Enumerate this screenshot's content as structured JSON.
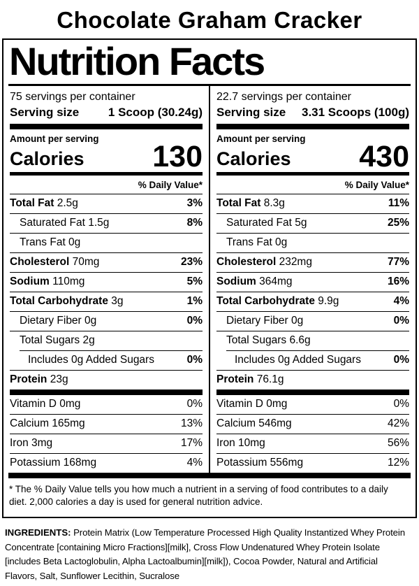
{
  "colors": {
    "ink": "#000000",
    "paper": "#ffffff"
  },
  "product_title": "Chocolate Graham Cracker",
  "nutrition_title": "Nutrition Facts",
  "columns": [
    {
      "servings_per_container": "75 servings per container",
      "serving_size_label": "Serving size",
      "serving_size_value": "1 Scoop (30.24g)",
      "amount_per_serving_label": "Amount per serving",
      "calories_label": "Calories",
      "calories_value": "130",
      "daily_value_header": "% Daily Value*",
      "rows": [
        {
          "name": "Total Fat",
          "amount": "2.5g",
          "dv": "3%",
          "bold": true,
          "indent": 0
        },
        {
          "name": "Saturated Fat",
          "amount": "1.5g",
          "dv": "8%",
          "bold": false,
          "indent": 1
        },
        {
          "name": "Trans Fat",
          "amount": "0g",
          "dv": "",
          "bold": false,
          "indent": 1
        },
        {
          "name": "Cholesterol",
          "amount": "70mg",
          "dv": "23%",
          "bold": true,
          "indent": 0
        },
        {
          "name": "Sodium",
          "amount": "110mg",
          "dv": "5%",
          "bold": true,
          "indent": 0
        },
        {
          "name": "Total Carbohydrate",
          "amount": "3g",
          "dv": "1%",
          "bold": true,
          "indent": 0
        },
        {
          "name": "Dietary Fiber",
          "amount": "0g",
          "dv": "0%",
          "bold": false,
          "indent": 1
        },
        {
          "name": "Total Sugars",
          "amount": "2g",
          "dv": "",
          "bold": false,
          "indent": 1
        },
        {
          "name": "Includes 0g Added Sugars",
          "amount": "",
          "dv": "0%",
          "bold": false,
          "indent": 2
        },
        {
          "name": "Protein",
          "amount": "23g",
          "dv": "",
          "bold": true,
          "indent": 0
        }
      ],
      "vitamins": [
        {
          "name": "Vitamin D",
          "amount": "0mg",
          "dv": "0%",
          "bold": false,
          "indent": 0
        },
        {
          "name": "Calcium",
          "amount": "165mg",
          "dv": "13%",
          "bold": false,
          "indent": 0
        },
        {
          "name": "Iron",
          "amount": "3mg",
          "dv": "17%",
          "bold": false,
          "indent": 0
        },
        {
          "name": "Potassium",
          "amount": "168mg",
          "dv": "4%",
          "bold": false,
          "indent": 0
        }
      ]
    },
    {
      "servings_per_container": "22.7 servings per container",
      "serving_size_label": "Serving size",
      "serving_size_value": "3.31 Scoops (100g)",
      "amount_per_serving_label": "Amount per serving",
      "calories_label": "Calories",
      "calories_value": "430",
      "daily_value_header": "% Daily Value*",
      "rows": [
        {
          "name": "Total Fat",
          "amount": "8.3g",
          "dv": "11%",
          "bold": true,
          "indent": 0
        },
        {
          "name": "Saturated Fat",
          "amount": "5g",
          "dv": "25%",
          "bold": false,
          "indent": 1
        },
        {
          "name": "Trans Fat",
          "amount": "0g",
          "dv": "",
          "bold": false,
          "indent": 1
        },
        {
          "name": "Cholesterol",
          "amount": "232mg",
          "dv": "77%",
          "bold": true,
          "indent": 0
        },
        {
          "name": "Sodium",
          "amount": "364mg",
          "dv": "16%",
          "bold": true,
          "indent": 0
        },
        {
          "name": "Total Carbohydrate",
          "amount": "9.9g",
          "dv": "4%",
          "bold": true,
          "indent": 0
        },
        {
          "name": "Dietary Fiber",
          "amount": "0g",
          "dv": "0%",
          "bold": false,
          "indent": 1
        },
        {
          "name": "Total Sugars",
          "amount": "6.6g",
          "dv": "",
          "bold": false,
          "indent": 1
        },
        {
          "name": "Includes 0g Added Sugars",
          "amount": "",
          "dv": "0%",
          "bold": false,
          "indent": 2
        },
        {
          "name": "Protein",
          "amount": "76.1g",
          "dv": "",
          "bold": true,
          "indent": 0
        }
      ],
      "vitamins": [
        {
          "name": "Vitamin D",
          "amount": "0mg",
          "dv": "0%",
          "bold": false,
          "indent": 0
        },
        {
          "name": "Calcium",
          "amount": "546mg",
          "dv": "42%",
          "bold": false,
          "indent": 0
        },
        {
          "name": "Iron",
          "amount": "10mg",
          "dv": "56%",
          "bold": false,
          "indent": 0
        },
        {
          "name": "Potassium",
          "amount": "556mg",
          "dv": "12%",
          "bold": false,
          "indent": 0
        }
      ]
    }
  ],
  "footnote": "* The % Daily Value tells you how much a nutrient in a serving of food contributes to a daily diet. 2,000 calories a day is used for general nutrition advice.",
  "ingredients": {
    "label": "INGREDIENTS:",
    "text": "Protein Matrix (Low Temperature Processed High Quality Instantized Whey Protein Concentrate [containing Micro Fractions][milk], Cross Flow Undenatured Whey Protein Isolate [includes Beta Lactoglobulin, Alpha Lactoalbumin][milk]), Cocoa Powder, Natural and Artificial Flavors, Salt, Sunflower Lecithin, Sucralose"
  }
}
